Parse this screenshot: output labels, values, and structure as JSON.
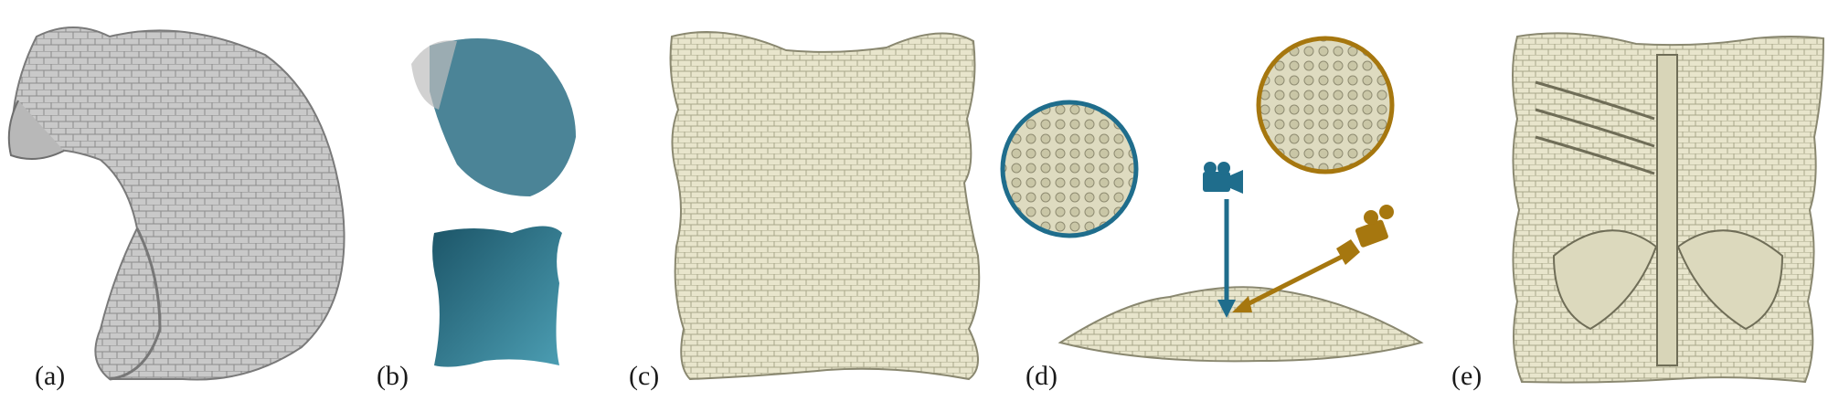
{
  "figure": {
    "panels": [
      {
        "label": "(a)",
        "content": "armadillo-carapace-3d-render"
      },
      {
        "label": "(b)",
        "content": "shell-segmentation-and-flattened-parameterization"
      },
      {
        "label": "(c)",
        "content": "flattened-osteoderm-texture"
      },
      {
        "label": "(d)",
        "content": "surface-view-with-two-camera-closeups"
      },
      {
        "label": "(e)",
        "content": "flattened-shell-inner-side-with-skeleton"
      }
    ]
  },
  "colors": {
    "render_gray": "#bdbdbd",
    "shell_cream": "#e6e2c8",
    "segment_teal": "#2b6f85",
    "camera_blue": "#1f6d8c",
    "camera_gold": "#a6770f"
  },
  "icons": [
    "camera-icon-blue",
    "camera-icon-gold"
  ]
}
